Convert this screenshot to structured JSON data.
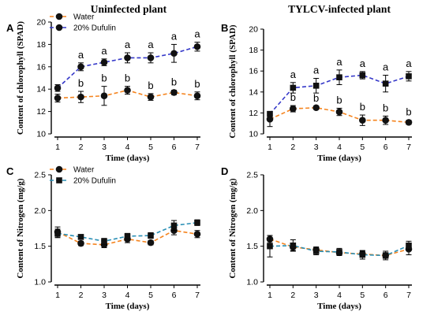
{
  "chart_data": [
    {
      "type": "line",
      "panel": "A",
      "title": "Uninfected plant",
      "xlabel": "Time (days)",
      "ylabel": "Content of chlorophyll (SPAD)",
      "categories": [
        "1",
        "2",
        "3",
        "4",
        "5",
        "6",
        "7"
      ],
      "ylim": [
        10,
        20
      ],
      "yticks": [
        "10",
        "12",
        "14",
        "16",
        "18",
        "20"
      ],
      "legend": "top-left",
      "series": [
        {
          "name": "Water",
          "color": "#f5841f",
          "marker": "circle",
          "values": [
            13.2,
            13.3,
            13.4,
            13.9,
            13.3,
            13.7,
            13.4
          ],
          "errors": [
            0.35,
            0.5,
            0.85,
            0.35,
            0.3,
            0.2,
            0.35
          ],
          "labels": [
            "",
            "b",
            "b",
            "b",
            "b",
            "b",
            "b"
          ]
        },
        {
          "name": "20% Dufulin",
          "color": "#3538c9",
          "marker": "circle",
          "values": [
            14.1,
            16.0,
            16.4,
            16.8,
            16.8,
            17.2,
            17.8
          ],
          "errors": [
            0.3,
            0.35,
            0.3,
            0.45,
            0.45,
            0.8,
            0.4
          ],
          "labels": [
            "",
            "a",
            "a",
            "a",
            "a",
            "a",
            "a"
          ]
        }
      ]
    },
    {
      "type": "line",
      "panel": "B",
      "title": "TYLCV-infected plant",
      "xlabel": "Time (days)",
      "ylabel": "Content of chlorophyll (SPAD)",
      "categories": [
        "1",
        "2",
        "3",
        "4",
        "5",
        "6",
        "7"
      ],
      "ylim": [
        10,
        20
      ],
      "yticks": [
        "10",
        "12",
        "14",
        "16",
        "18",
        "20"
      ],
      "legend": "none",
      "series": [
        {
          "name": "Water",
          "color": "#f5841f",
          "marker": "circle",
          "values": [
            11.4,
            12.4,
            12.5,
            12.1,
            11.3,
            11.3,
            11.1
          ],
          "errors": [
            0.7,
            0.3,
            0.15,
            0.35,
            0.5,
            0.4,
            0.2
          ],
          "labels": [
            "",
            "b",
            "b",
            "b",
            "b",
            "b",
            "b"
          ]
        },
        {
          "name": "20% Dufulin",
          "color": "#3538c9",
          "marker": "square",
          "values": [
            11.9,
            14.4,
            14.6,
            15.4,
            15.6,
            14.8,
            15.5
          ],
          "errors": [
            0.25,
            0.5,
            0.7,
            0.7,
            0.35,
            0.8,
            0.45
          ],
          "labels": [
            "",
            "a",
            "a",
            "a",
            "a",
            "a",
            "a"
          ]
        }
      ]
    },
    {
      "type": "line",
      "panel": "C",
      "title": "",
      "xlabel": "Time (days)",
      "ylabel": "Content of Nitrogen (mg/g)",
      "categories": [
        "1",
        "2",
        "3",
        "4",
        "5",
        "6",
        "7"
      ],
      "ylim": [
        1.0,
        2.5
      ],
      "yticks": [
        "1.0",
        "1.5",
        "2.0",
        "2.5"
      ],
      "legend": "top-left",
      "series": [
        {
          "name": "Water",
          "color": "#f5841f",
          "marker": "circle",
          "values": [
            1.7,
            1.54,
            1.52,
            1.6,
            1.55,
            1.72,
            1.67
          ],
          "errors": [
            0.07,
            0.03,
            0.04,
            0.05,
            0.03,
            0.06,
            0.05
          ],
          "labels": []
        },
        {
          "name": "20% Dufulin",
          "color": "#2a8fb5",
          "marker": "square",
          "values": [
            1.68,
            1.63,
            1.57,
            1.64,
            1.65,
            1.79,
            1.83
          ],
          "errors": [
            0.06,
            0.03,
            0.04,
            0.04,
            0.04,
            0.07,
            0.04
          ],
          "labels": []
        }
      ]
    },
    {
      "type": "line",
      "panel": "D",
      "title": "",
      "xlabel": "Time (days)",
      "ylabel": "Content of Nitrogen (mg/g)",
      "categories": [
        "1",
        "2",
        "3",
        "4",
        "5",
        "6",
        "7"
      ],
      "ylim": [
        1.0,
        2.5
      ],
      "yticks": [
        "1.0",
        "1.5",
        "2.0",
        "2.5"
      ],
      "legend": "none",
      "series": [
        {
          "name": "Water",
          "color": "#f5841f",
          "marker": "circle",
          "values": [
            1.6,
            1.49,
            1.45,
            1.41,
            1.39,
            1.37,
            1.46
          ],
          "errors": [
            0.05,
            0.05,
            0.04,
            0.03,
            0.04,
            0.04,
            0.08
          ],
          "labels": []
        },
        {
          "name": "20% Dufulin",
          "color": "#2a8fb5",
          "marker": "square",
          "values": [
            1.5,
            1.51,
            1.43,
            1.42,
            1.38,
            1.37,
            1.51
          ],
          "errors": [
            0.15,
            0.08,
            0.05,
            0.05,
            0.06,
            0.06,
            0.06
          ],
          "labels": []
        }
      ]
    }
  ]
}
